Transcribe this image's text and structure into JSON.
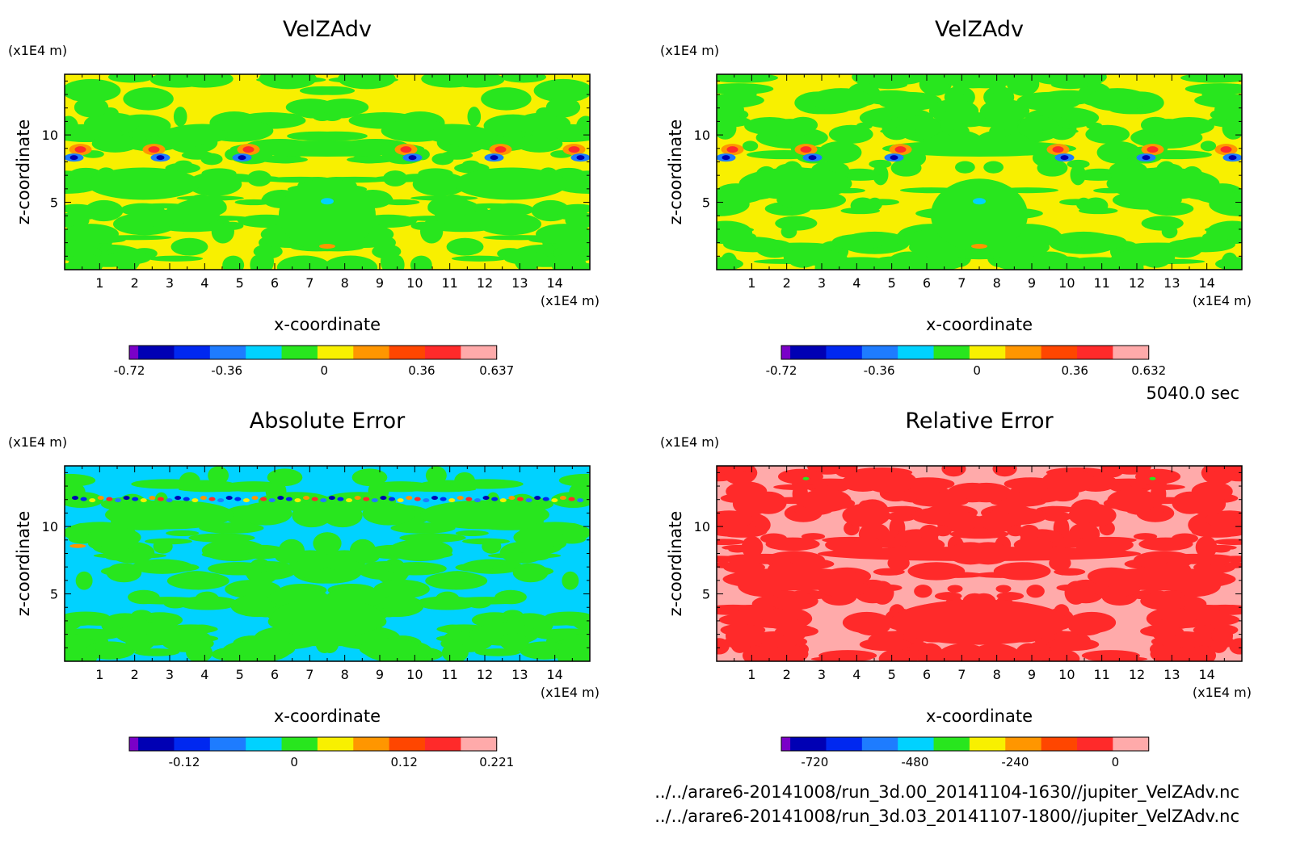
{
  "colors": {
    "purple": "#7a00c8",
    "navy": "#0000b4",
    "blue": "#0028f0",
    "midblue": "#1e7cff",
    "cyan": "#00d2ff",
    "green": "#28e61e",
    "yellow": "#f8f000",
    "orange": "#ff9600",
    "redorange": "#ff4600",
    "red": "#ff2a2a",
    "pink": "#ffaaaa"
  },
  "chart_data": [
    {
      "type": "heatmap",
      "title": "VelZAdv",
      "xlabel": "x-coordinate",
      "ylabel": "z-coordinate",
      "x_unit": "(x1E4 m)",
      "y_unit": "(x1E4 m)",
      "x_ticks": [
        "1",
        "2",
        "3",
        "4",
        "5",
        "6",
        "7",
        "8",
        "9",
        "10",
        "11",
        "12",
        "13",
        "14"
      ],
      "y_ticks": [
        "5",
        "10"
      ],
      "xlim": [
        0,
        15
      ],
      "ylim": [
        0,
        14.5
      ],
      "background": "yellow",
      "colorbar": {
        "colors": [
          "purple",
          "navy",
          "blue",
          "midblue",
          "cyan",
          "green",
          "yellow",
          "orange",
          "redorange",
          "red",
          "pink"
        ],
        "labels": [
          "-0.72",
          "-0.36",
          "0",
          "0.36",
          "0.637"
        ],
        "min": -0.72,
        "max": 0.637
      }
    },
    {
      "type": "heatmap",
      "title": "VelZAdv",
      "xlabel": "x-coordinate",
      "ylabel": "z-coordinate",
      "x_unit": "(x1E4 m)",
      "y_unit": "(x1E4 m)",
      "x_ticks": [
        "1",
        "2",
        "3",
        "4",
        "5",
        "6",
        "7",
        "8",
        "9",
        "10",
        "11",
        "12",
        "13",
        "14"
      ],
      "y_ticks": [
        "5",
        "10"
      ],
      "xlim": [
        0,
        15
      ],
      "ylim": [
        0,
        14.5
      ],
      "background": "yellow",
      "colorbar": {
        "colors": [
          "purple",
          "navy",
          "blue",
          "midblue",
          "cyan",
          "green",
          "yellow",
          "orange",
          "redorange",
          "red",
          "pink"
        ],
        "labels": [
          "-0.72",
          "-0.36",
          "0",
          "0.36",
          "0.632"
        ],
        "min": -0.72,
        "max": 0.632
      }
    },
    {
      "type": "heatmap",
      "title": "Absolute Error",
      "xlabel": "x-coordinate",
      "ylabel": "z-coordinate",
      "x_unit": "(x1E4 m)",
      "y_unit": "(x1E4 m)",
      "x_ticks": [
        "1",
        "2",
        "3",
        "4",
        "5",
        "6",
        "7",
        "8",
        "9",
        "10",
        "11",
        "12",
        "13",
        "14"
      ],
      "y_ticks": [
        "5",
        "10"
      ],
      "xlim": [
        0,
        15
      ],
      "ylim": [
        0,
        14.5
      ],
      "background": "cyan",
      "colorbar": {
        "colors": [
          "purple",
          "navy",
          "blue",
          "midblue",
          "cyan",
          "green",
          "yellow",
          "orange",
          "redorange",
          "red",
          "pink"
        ],
        "labels": [
          "-0.12",
          "0",
          "0.12",
          "0.221"
        ],
        "min": -0.18,
        "max": 0.221
      }
    },
    {
      "type": "heatmap",
      "title": "Relative Error",
      "xlabel": "x-coordinate",
      "ylabel": "z-coordinate",
      "x_unit": "(x1E4 m)",
      "y_unit": "(x1E4 m)",
      "x_ticks": [
        "1",
        "2",
        "3",
        "4",
        "5",
        "6",
        "7",
        "8",
        "9",
        "10",
        "11",
        "12",
        "13",
        "14"
      ],
      "y_ticks": [
        "5",
        "10"
      ],
      "xlim": [
        0,
        15
      ],
      "ylim": [
        0,
        14.5
      ],
      "background": "pink",
      "colorbar": {
        "colors": [
          "purple",
          "navy",
          "blue",
          "midblue",
          "cyan",
          "green",
          "yellow",
          "orange",
          "redorange",
          "red",
          "pink"
        ],
        "labels": [
          "-720",
          "-480",
          "-240",
          "0"
        ],
        "min": -800,
        "max": 80
      }
    }
  ],
  "time_label": "5040.0 sec",
  "files": [
    "../../arare6-20141008/run_3d.00_20141104-1630//jupiter_VelZAdv.nc",
    "../../arare6-20141008/run_3d.03_20141107-1800//jupiter_VelZAdv.nc"
  ]
}
